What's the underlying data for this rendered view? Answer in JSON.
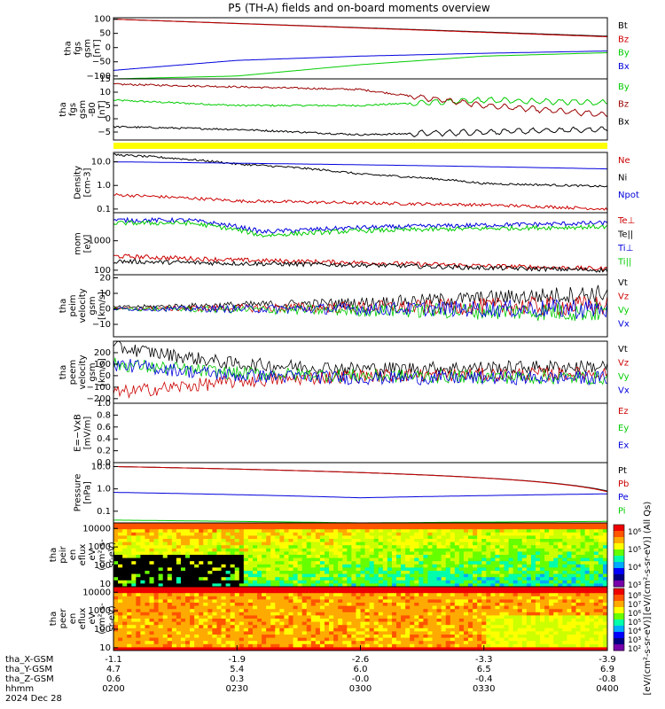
{
  "title": "P5 (TH-A) fields and on-board moments overview",
  "colors": {
    "black": "#000000",
    "red": "#cc0000",
    "blue": "#0000dd",
    "green": "#00cc00",
    "darkred": "#990000",
    "yellow": "#ffff00"
  },
  "chart_data": [
    {
      "type": "line",
      "ylabel": [
        "tha",
        "fgs",
        "gsm",
        "[nT]"
      ],
      "ylim": [
        -110,
        105
      ],
      "yticks": [
        100,
        50,
        0,
        -50,
        -100
      ],
      "ytick_labels": [
        "100",
        "50",
        "0",
        "−50",
        "−100"
      ],
      "series": [
        {
          "name": "Bt",
          "color": "black",
          "x": [
            0,
            1
          ],
          "values": [
            100,
            40
          ]
        },
        {
          "name": "Bz",
          "color": "red",
          "x": [
            0,
            1
          ],
          "values": [
            100,
            38
          ]
        },
        {
          "name": "By",
          "color": "green",
          "x": [
            0,
            0.25,
            0.5,
            0.75,
            1
          ],
          "values": [
            -110,
            -100,
            -60,
            -30,
            -18
          ]
        },
        {
          "name": "Bx",
          "color": "blue",
          "x": [
            0,
            0.25,
            0.5,
            0.75,
            1
          ],
          "values": [
            -80,
            -45,
            -30,
            -20,
            -12
          ]
        }
      ]
    },
    {
      "type": "line",
      "ylabel": [
        "tha",
        "fgs",
        "gsm",
        "-B0",
        "[nT]"
      ],
      "ylim": [
        -8,
        15
      ],
      "yticks": [
        15,
        10,
        5,
        0,
        -5
      ],
      "ytick_labels": [
        "15",
        "10",
        "5",
        "0",
        "−5"
      ],
      "series": [
        {
          "name": "By",
          "color": "green",
          "x": [
            0,
            0.25,
            0.5,
            0.75,
            1
          ],
          "values": [
            7,
            5,
            5,
            7,
            6
          ]
        },
        {
          "name": "Bz",
          "color": "darkred",
          "x": [
            0,
            0.25,
            0.5,
            0.75,
            1
          ],
          "values": [
            13,
            12,
            11,
            5,
            1.5
          ]
        },
        {
          "name": "Bx",
          "color": "black",
          "x": [
            0,
            0.25,
            0.5,
            0.75,
            1
          ],
          "values": [
            -3,
            -4,
            -6,
            -5,
            -4
          ]
        }
      ]
    },
    {
      "type": "log",
      "ylabel": [
        "Density",
        "[cm-3]"
      ],
      "ylim": [
        0.07,
        25
      ],
      "yticks": [
        10,
        1,
        0.1
      ],
      "ytick_labels": [
        "10.0",
        "1.0",
        "0.1"
      ],
      "series": [
        {
          "name": "Ne",
          "color": "red",
          "x": [
            0,
            0.25,
            0.5,
            0.75,
            1
          ],
          "values": [
            0.4,
            0.22,
            0.18,
            0.15,
            0.1
          ]
        },
        {
          "name": "Ni",
          "color": "black",
          "x": [
            0,
            0.25,
            0.5,
            0.75,
            1
          ],
          "values": [
            20,
            8,
            3,
            1.2,
            0.9
          ]
        },
        {
          "name": "Npot",
          "color": "blue",
          "x": [
            0,
            1
          ],
          "values": [
            10,
            5
          ]
        }
      ]
    },
    {
      "type": "log",
      "ylabel": [
        "mom",
        "[eV]"
      ],
      "ylim": [
        70,
        9000
      ],
      "yticks": [
        1000,
        100
      ],
      "ytick_labels": [
        "1000",
        "100"
      ],
      "series": [
        {
          "name": "Te⊥",
          "color": "red",
          "x": [
            0,
            0.25,
            0.5,
            0.75,
            1
          ],
          "values": [
            300,
            220,
            180,
            140,
            110
          ]
        },
        {
          "name": "Te||",
          "color": "black",
          "x": [
            0,
            0.25,
            0.5,
            0.75,
            1
          ],
          "values": [
            200,
            170,
            150,
            120,
            100
          ]
        },
        {
          "name": "Ti⊥",
          "color": "blue",
          "x": [
            0,
            0.15,
            0.3,
            0.5,
            1
          ],
          "values": [
            5000,
            5000,
            2000,
            2800,
            4000
          ]
        },
        {
          "name": "Ti||",
          "color": "green",
          "x": [
            0,
            0.15,
            0.3,
            0.5,
            1
          ],
          "values": [
            4000,
            4000,
            1500,
            2200,
            3000
          ]
        }
      ]
    },
    {
      "type": "line",
      "ylabel": [
        "tha",
        "peim",
        "velocity",
        "gsm",
        "[km/s]"
      ],
      "ylim": [
        -18,
        22
      ],
      "yticks": [
        20,
        10,
        0,
        -10
      ],
      "ytick_labels": [
        "20",
        "10",
        "0",
        "−10"
      ],
      "series": [
        {
          "name": "Vt",
          "color": "black",
          "x": [
            0,
            0.5,
            1
          ],
          "values": [
            1,
            4,
            10
          ]
        },
        {
          "name": "Vz",
          "color": "red",
          "x": [
            0,
            1
          ],
          "values": [
            0,
            2
          ]
        },
        {
          "name": "Vy",
          "color": "green",
          "x": [
            0,
            1
          ],
          "values": [
            0,
            -2
          ]
        },
        {
          "name": "Vx",
          "color": "blue",
          "x": [
            0,
            1
          ],
          "values": [
            0,
            0
          ]
        }
      ]
    },
    {
      "type": "line",
      "ylabel": [
        "tha",
        "peem",
        "velocity",
        "gsm",
        "[km/s]"
      ],
      "ylim": [
        -240,
        300
      ],
      "yticks": [
        200,
        100,
        0,
        -100,
        -200
      ],
      "ytick_labels": [
        "200",
        "100",
        "0",
        "−100",
        "−200"
      ],
      "series": [
        {
          "name": "Vt",
          "color": "black",
          "x": [
            0,
            0.25,
            0.5,
            1
          ],
          "values": [
            250,
            100,
            60,
            80
          ]
        },
        {
          "name": "Vz",
          "color": "red",
          "x": [
            0,
            0.25,
            0.5,
            1
          ],
          "values": [
            -150,
            -50,
            0,
            20
          ]
        },
        {
          "name": "Vy",
          "color": "green",
          "x": [
            0,
            0.25,
            0.5,
            1
          ],
          "values": [
            100,
            20,
            0,
            -20
          ]
        },
        {
          "name": "Vx",
          "color": "blue",
          "x": [
            0,
            0.25,
            0.5,
            1
          ],
          "values": [
            100,
            0,
            -20,
            -20
          ]
        }
      ]
    },
    {
      "type": "line",
      "ylabel": [
        "E=−VxB",
        "[mV/m]"
      ],
      "ylim": [
        0,
        1
      ],
      "yticks": [
        1,
        0.8,
        0.6,
        0.4,
        0.2,
        0
      ],
      "ytick_labels": [
        "1.0",
        "0.8",
        "0.6",
        "0.4",
        "0.2",
        "0.0"
      ],
      "series": [
        {
          "name": "Ez",
          "color": "red",
          "x": [],
          "values": []
        },
        {
          "name": "Ey",
          "color": "green",
          "x": [],
          "values": []
        },
        {
          "name": "Ex",
          "color": "blue",
          "x": [],
          "values": []
        }
      ]
    },
    {
      "type": "log",
      "ylabel": [
        "Pressure",
        "[nPa]"
      ],
      "ylim": [
        0.03,
        15
      ],
      "yticks": [
        10,
        1,
        0.1
      ],
      "ytick_labels": [
        "10.0",
        "1.0",
        "0.1"
      ],
      "series": [
        {
          "name": "Pt",
          "color": "black",
          "x": [
            0,
            1
          ],
          "values": [
            10,
            0.8
          ]
        },
        {
          "name": "Pb",
          "color": "red",
          "x": [
            0,
            1
          ],
          "values": [
            10,
            0.75
          ]
        },
        {
          "name": "Pe",
          "color": "blue",
          "x": [
            0,
            0.5,
            1
          ],
          "values": [
            0.7,
            0.4,
            0.6
          ]
        },
        {
          "name": "Pi",
          "color": "green",
          "x": [
            0,
            0.5,
            1
          ],
          "values": [
            0.04,
            0.03,
            0.035
          ]
        }
      ]
    },
    {
      "type": "heatmap",
      "ylabel": [
        "tha",
        "peir",
        "en",
        "eflux",
        "eV",
        "(cm²-s-",
        "sr-eV)"
      ],
      "yticks": [
        10000,
        1000,
        100,
        10
      ],
      "ytick_labels": [
        "10000",
        "1000",
        "100",
        "10"
      ],
      "colorbar_label": "[eV/(cm²-s-sr-eV)] (All Qs)",
      "colorbar_ticks": [
        "10⁶",
        "10⁵",
        "10⁴",
        "10³"
      ]
    },
    {
      "type": "heatmap",
      "ylabel": [
        "tha",
        "peer",
        "en",
        "eflux",
        "eV",
        "(cm²-s-",
        "sr-eV)"
      ],
      "yticks": [
        10000,
        1000,
        100,
        10
      ],
      "ytick_labels": [
        "10000",
        "1000",
        "100",
        "10"
      ],
      "colorbar_label": "[eV/(cm²-s-sr-eV)]",
      "colorbar_ticks": [
        "10⁸",
        "10⁷",
        "10⁶",
        "10⁵",
        "10⁴",
        "10³",
        "10²"
      ]
    }
  ],
  "x_axis": {
    "rows": [
      {
        "label": "tha_X-GSM",
        "values": [
          "-1.1",
          "-1.9",
          "-2.6",
          "-3.3",
          "-3.9"
        ]
      },
      {
        "label": "tha_Y-GSM",
        "values": [
          "4.7",
          "5.4",
          "6.0",
          "6.5",
          "6.9"
        ]
      },
      {
        "label": "tha_Z-GSM",
        "values": [
          "0.6",
          "0.3",
          "-0.0",
          "-0.4",
          "-0.8"
        ]
      },
      {
        "label": "hhmm",
        "values": [
          "0200",
          "0230",
          "0300",
          "0330",
          "0400"
        ]
      }
    ],
    "date": "2024 Dec 28"
  }
}
